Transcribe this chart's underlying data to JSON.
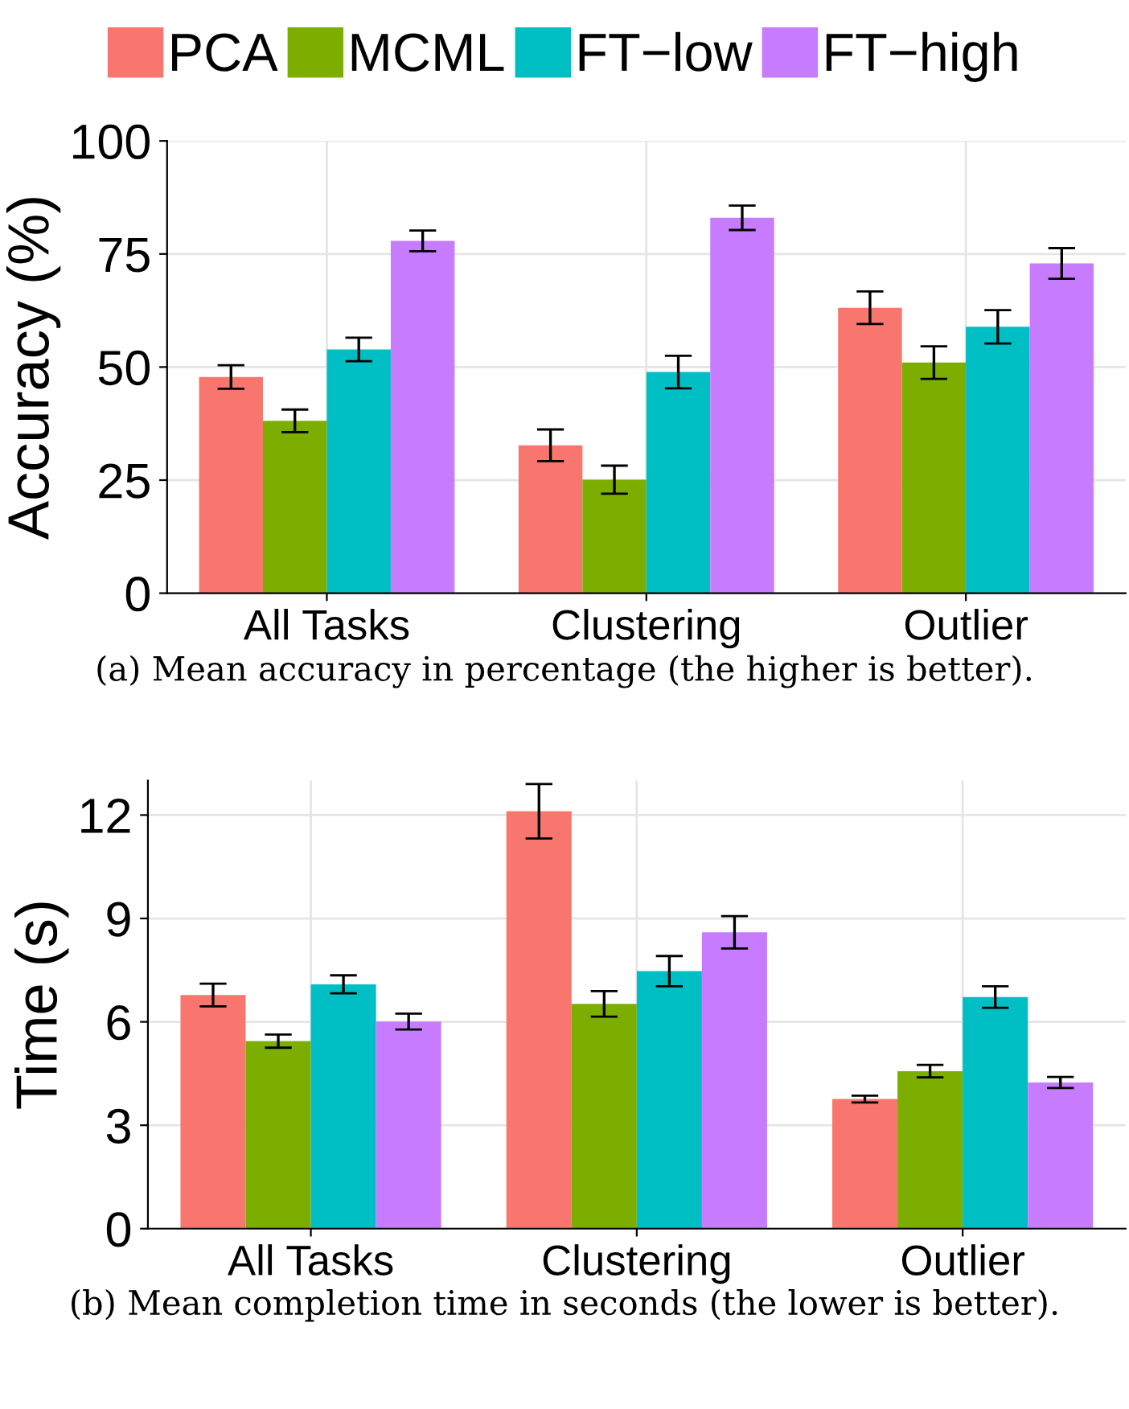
{
  "chart_data": [
    {
      "type": "bar",
      "ylabel": "Accuracy (%)",
      "categories": [
        "All Tasks",
        "Clustering",
        "Outlier"
      ],
      "ylim": [
        0,
        100
      ],
      "yticks": [
        0,
        25,
        50,
        75,
        100
      ],
      "grid": true,
      "legend": "top",
      "annotations": [
        "(a) Mean accuracy in percentage (the higher is better)."
      ],
      "series": [
        {
          "name": "PCA",
          "color": "#f8766d",
          "values": [
            47.8,
            32.7,
            63.1
          ],
          "errors": [
            2.6,
            3.5,
            3.6
          ]
        },
        {
          "name": "MCML",
          "color": "#7cae00",
          "values": [
            38.1,
            25.1,
            51.0
          ],
          "errors": [
            2.5,
            3.1,
            3.6
          ]
        },
        {
          "name": "FT−low",
          "color": "#00bfc4",
          "values": [
            53.9,
            48.9,
            58.9
          ],
          "errors": [
            2.6,
            3.6,
            3.7
          ]
        },
        {
          "name": "FT−high",
          "color": "#c77cff",
          "values": [
            77.9,
            83.0,
            72.9
          ],
          "errors": [
            2.3,
            2.7,
            3.4
          ]
        }
      ]
    },
    {
      "type": "bar",
      "ylabel": "Time (s)",
      "categories": [
        "All Tasks",
        "Clustering",
        "Outlier"
      ],
      "ylim": [
        0,
        13
      ],
      "yticks": [
        0,
        3,
        6,
        9,
        12
      ],
      "grid": true,
      "annotations": [
        "(b) Mean completion time in seconds (the lower is better)."
      ],
      "series": [
        {
          "color": "#f8766d",
          "values": [
            6.78,
            12.11,
            3.76
          ],
          "errors": [
            0.33,
            0.79,
            0.1
          ]
        },
        {
          "color": "#7cae00",
          "values": [
            5.44,
            6.52,
            4.57
          ],
          "errors": [
            0.19,
            0.37,
            0.18
          ]
        },
        {
          "color": "#00bfc4",
          "values": [
            7.09,
            7.47,
            6.72
          ],
          "errors": [
            0.26,
            0.44,
            0.31
          ]
        },
        {
          "color": "#c77cff",
          "values": [
            6.01,
            8.6,
            4.24
          ],
          "errors": [
            0.23,
            0.47,
            0.16
          ]
        }
      ]
    }
  ]
}
